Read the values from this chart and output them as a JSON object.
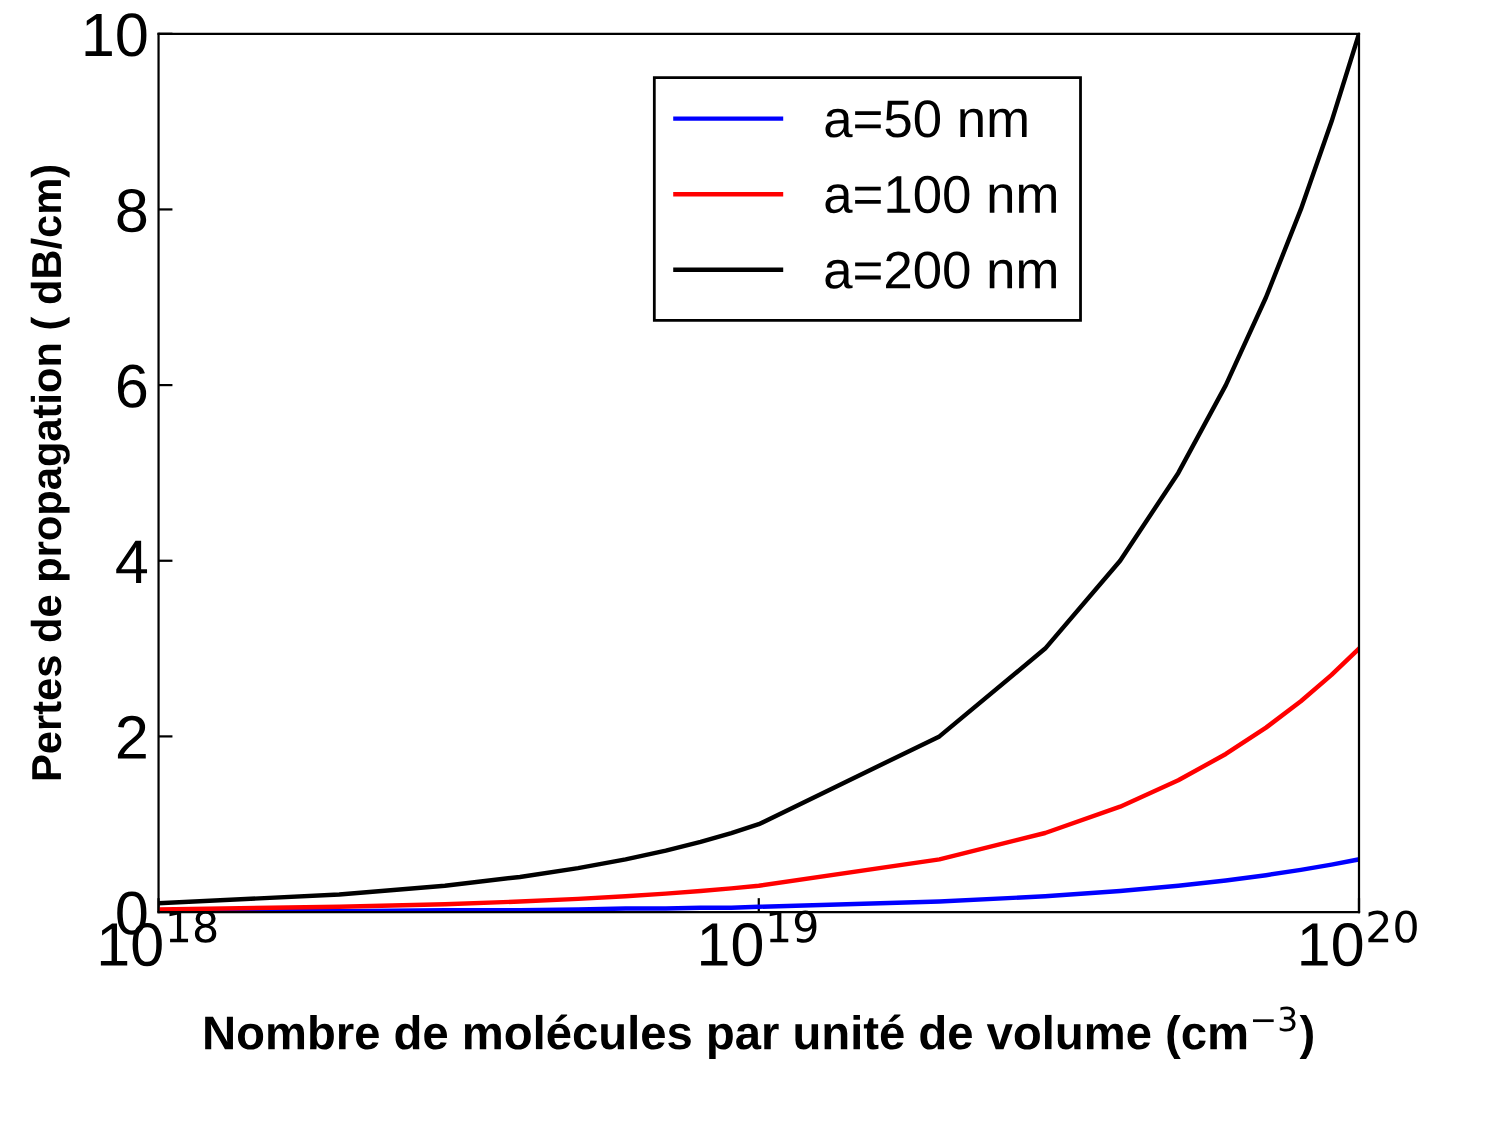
{
  "chart_data": {
    "type": "line",
    "xlabel": "Nombre de molécules par unité de volume (cm$^{−3}$)",
    "ylabel": "Pertes de propagation ( dB/cm)",
    "x": [
      1e+18,
      2e+18,
      3e+18,
      4e+18,
      5e+18,
      6e+18,
      7e+18,
      8e+18,
      9e+18,
      1e+19,
      2e+19,
      3e+19,
      4e+19,
      5e+19,
      6e+19,
      7e+19,
      8e+19,
      9e+19,
      1e+20
    ],
    "series": [
      {
        "name": "a=50 nm",
        "color": "#0000ff",
        "values": [
          0.01,
          0.01,
          0.02,
          0.02,
          0.03,
          0.04,
          0.04,
          0.05,
          0.05,
          0.06,
          0.12,
          0.18,
          0.24,
          0.3,
          0.36,
          0.42,
          0.48,
          0.54,
          0.6
        ]
      },
      {
        "name": "a=100 nm",
        "color": "#ff0000",
        "values": [
          0.03,
          0.06,
          0.09,
          0.12,
          0.15,
          0.18,
          0.21,
          0.24,
          0.27,
          0.3,
          0.6,
          0.9,
          1.2,
          1.5,
          1.8,
          2.1,
          2.4,
          2.7,
          3.0
        ]
      },
      {
        "name": "a=200 nm",
        "color": "#000000",
        "values": [
          0.1,
          0.2,
          0.3,
          0.4,
          0.5,
          0.6,
          0.7,
          0.8,
          0.9,
          1.0,
          2.0,
          3.0,
          4.0,
          5.0,
          6.0,
          7.0,
          8.0,
          9.0,
          10.0
        ]
      }
    ],
    "log": "x",
    "xlim": [
      1e+18,
      1e+20
    ],
    "xticks": [
      {
        "value": 1e+18,
        "label": "10$^{18}$"
      },
      {
        "value": 1e+19,
        "label": "10$^{19}$"
      },
      {
        "value": 1e+20,
        "label": "10$^{20}$"
      }
    ],
    "ylim": [
      0,
      10
    ],
    "yticks": [
      0,
      2,
      4,
      6,
      8,
      10
    ],
    "legend": "top right",
    "grid": false,
    "marker": "none",
    "line_style": "solid"
  }
}
